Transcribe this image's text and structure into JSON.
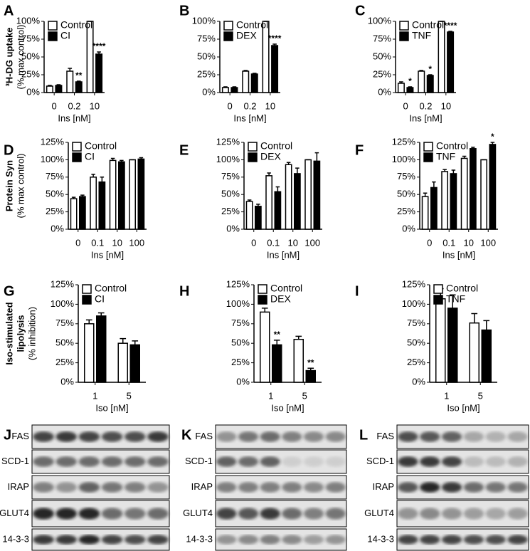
{
  "chart_data": [
    {
      "type": "bar",
      "panel": "A",
      "ylabel": [
        "³H-DG uptake",
        "(% max control)"
      ],
      "xlabel": "Ins [nM]",
      "categories": [
        "0",
        "0.2",
        "10"
      ],
      "ylim": [
        0,
        100
      ],
      "yticks": [
        {
          "value": 0,
          "label": "0%"
        },
        {
          "value": 25,
          "label": "25%"
        },
        {
          "value": 50,
          "label": "50%"
        },
        {
          "value": 75,
          "label": "75%"
        },
        {
          "value": 100,
          "label": "100%"
        }
      ],
      "series": [
        {
          "name": "Control",
          "color": "#ffffff",
          "values": [
            9,
            30,
            100
          ],
          "errors": [
            1,
            4,
            0
          ]
        },
        {
          "name": "CI",
          "color": "#000000",
          "values": [
            10,
            15,
            54
          ],
          "errors": [
            1,
            1,
            3
          ],
          "significance": [
            null,
            "**",
            "****"
          ]
        }
      ]
    },
    {
      "type": "bar",
      "panel": "B",
      "xlabel": "Ins [nM]",
      "categories": [
        "0",
        "0.2",
        "10"
      ],
      "ylim": [
        0,
        100
      ],
      "yticks": [
        {
          "value": 0,
          "label": "0%"
        },
        {
          "value": 25,
          "label": "25%"
        },
        {
          "value": 50,
          "label": "50%"
        },
        {
          "value": 75,
          "label": "75%"
        },
        {
          "value": 100,
          "label": "100%"
        }
      ],
      "series": [
        {
          "name": "Control",
          "color": "#ffffff",
          "values": [
            7,
            30,
            100
          ],
          "errors": [
            1,
            1,
            0
          ]
        },
        {
          "name": "DEX",
          "color": "#000000",
          "values": [
            7,
            26,
            66
          ],
          "errors": [
            1,
            1,
            2
          ],
          "significance": [
            null,
            null,
            "****"
          ]
        }
      ]
    },
    {
      "type": "bar",
      "panel": "C",
      "xlabel": "Ins [nM]",
      "categories": [
        "0",
        "0.2",
        "10"
      ],
      "ylim": [
        0,
        100
      ],
      "yticks": [
        {
          "value": 0,
          "label": "0%"
        },
        {
          "value": 25,
          "label": "25%"
        },
        {
          "value": 50,
          "label": "50%"
        },
        {
          "value": 75,
          "label": "75%"
        },
        {
          "value": 100,
          "label": "100%"
        }
      ],
      "series": [
        {
          "name": "Control",
          "color": "#ffffff",
          "values": [
            13,
            30,
            100
          ],
          "errors": [
            2,
            1,
            0
          ]
        },
        {
          "name": "TNF",
          "color": "#000000",
          "values": [
            7,
            24,
            85
          ],
          "errors": [
            1,
            1,
            1
          ],
          "significance": [
            "*",
            "*",
            "****"
          ]
        }
      ]
    },
    {
      "type": "bar",
      "panel": "D",
      "ylabel": [
        "Protein Syn",
        "(% max control)"
      ],
      "xlabel": "Ins [nM]",
      "categories": [
        "0",
        "0.1",
        "10",
        "100"
      ],
      "ylim": [
        0,
        125
      ],
      "yticks": [
        {
          "value": 0,
          "label": "0%"
        },
        {
          "value": 25,
          "label": "25%"
        },
        {
          "value": 50,
          "label": "50%"
        },
        {
          "value": 75,
          "label": "75%"
        },
        {
          "value": 100,
          "label": "100%"
        },
        {
          "value": 125,
          "label": "125%"
        }
      ],
      "series": [
        {
          "name": "Control",
          "color": "#ffffff",
          "values": [
            44,
            75,
            99,
            100
          ],
          "errors": [
            2,
            4,
            3,
            0
          ]
        },
        {
          "name": "CI",
          "color": "#000000",
          "values": [
            47,
            68,
            97,
            101
          ],
          "errors": [
            2,
            7,
            2,
            2
          ]
        }
      ]
    },
    {
      "type": "bar",
      "panel": "E",
      "xlabel": "Ins [nM]",
      "categories": [
        "0",
        "0.1",
        "10",
        "100"
      ],
      "ylim": [
        0,
        125
      ],
      "yticks": [
        {
          "value": 0,
          "label": "0%"
        },
        {
          "value": 25,
          "label": "25%"
        },
        {
          "value": 50,
          "label": "50%"
        },
        {
          "value": 75,
          "label": "75%"
        },
        {
          "value": 100,
          "label": "100%"
        },
        {
          "value": 125,
          "label": "125%"
        }
      ],
      "series": [
        {
          "name": "Control",
          "color": "#ffffff",
          "values": [
            40,
            77,
            93,
            100
          ],
          "errors": [
            2,
            4,
            3,
            0
          ]
        },
        {
          "name": "DEX",
          "color": "#000000",
          "values": [
            33,
            54,
            80,
            98
          ],
          "errors": [
            3,
            7,
            8,
            12
          ]
        }
      ]
    },
    {
      "type": "bar",
      "panel": "F",
      "xlabel": "Ins [nM]",
      "categories": [
        "0",
        "0.1",
        "10",
        "100"
      ],
      "ylim": [
        0,
        125
      ],
      "yticks": [
        {
          "value": 0,
          "label": "0%"
        },
        {
          "value": 25,
          "label": "25%"
        },
        {
          "value": 50,
          "label": "50%"
        },
        {
          "value": 75,
          "label": "75%"
        },
        {
          "value": 100,
          "label": "100%"
        },
        {
          "value": 125,
          "label": "125%"
        }
      ],
      "series": [
        {
          "name": "Control",
          "color": "#ffffff",
          "values": [
            47,
            83,
            102,
            100
          ],
          "errors": [
            5,
            3,
            3,
            0
          ]
        },
        {
          "name": "TNF",
          "color": "#000000",
          "values": [
            60,
            80,
            116,
            122
          ],
          "errors": [
            8,
            5,
            2,
            3
          ],
          "significance": [
            null,
            null,
            null,
            "*"
          ]
        }
      ]
    },
    {
      "type": "bar",
      "panel": "G",
      "ylabel": [
        "Iso-stimulated",
        "lipolysis",
        "(% inhibition)"
      ],
      "xlabel": "Iso [nM]",
      "categories": [
        "1",
        "5"
      ],
      "ylim": [
        0,
        125
      ],
      "yticks": [
        {
          "value": 0,
          "label": "0%"
        },
        {
          "value": 25,
          "label": "25%"
        },
        {
          "value": 50,
          "label": "50%"
        },
        {
          "value": 75,
          "label": "75%"
        },
        {
          "value": 100,
          "label": "100%"
        },
        {
          "value": 125,
          "label": "125%"
        }
      ],
      "series": [
        {
          "name": "Control",
          "color": "#ffffff",
          "values": [
            75,
            50
          ],
          "errors": [
            5,
            6
          ]
        },
        {
          "name": "CI",
          "color": "#000000",
          "values": [
            85,
            48
          ],
          "errors": [
            4,
            5
          ]
        }
      ]
    },
    {
      "type": "bar",
      "panel": "H",
      "xlabel": "Iso [nM]",
      "categories": [
        "1",
        "5"
      ],
      "ylim": [
        0,
        125
      ],
      "yticks": [
        {
          "value": 0,
          "label": "0%"
        },
        {
          "value": 25,
          "label": "25%"
        },
        {
          "value": 50,
          "label": "50%"
        },
        {
          "value": 75,
          "label": "75%"
        },
        {
          "value": 100,
          "label": "100%"
        },
        {
          "value": 125,
          "label": "125%"
        }
      ],
      "series": [
        {
          "name": "Control",
          "color": "#ffffff",
          "values": [
            90,
            55
          ],
          "errors": [
            5,
            4
          ]
        },
        {
          "name": "DEX",
          "color": "#000000",
          "values": [
            48,
            15
          ],
          "errors": [
            6,
            3
          ],
          "significance": [
            "**",
            "**"
          ]
        }
      ]
    },
    {
      "type": "bar",
      "panel": "I",
      "xlabel": "Iso [nM]",
      "categories": [
        "1",
        "5"
      ],
      "ylim": [
        0,
        125
      ],
      "yticks": [
        {
          "value": 0,
          "label": "0%"
        },
        {
          "value": 25,
          "label": "25%"
        },
        {
          "value": 50,
          "label": "50%"
        },
        {
          "value": 75,
          "label": "75%"
        },
        {
          "value": 100,
          "label": "100%"
        },
        {
          "value": 125,
          "label": "125%"
        }
      ],
      "series": [
        {
          "name": "Control",
          "color": "#ffffff",
          "values": [
            107,
            76
          ],
          "errors": [
            13,
            12
          ]
        },
        {
          "name": "TNF",
          "color": "#000000",
          "values": [
            95,
            67
          ],
          "errors": [
            17,
            12
          ]
        }
      ]
    }
  ],
  "blots": [
    {
      "panel": "J",
      "rows": [
        "FAS",
        "SCD-1",
        "IRAP",
        "GLUT4",
        "14-3-3"
      ]
    },
    {
      "panel": "K",
      "rows": [
        "FAS",
        "SCD-1",
        "IRAP",
        "GLUT4",
        "14-3-3"
      ]
    },
    {
      "panel": "L",
      "rows": [
        "FAS",
        "SCD-1",
        "IRAP",
        "GLUT4",
        "14-3-3"
      ]
    }
  ]
}
